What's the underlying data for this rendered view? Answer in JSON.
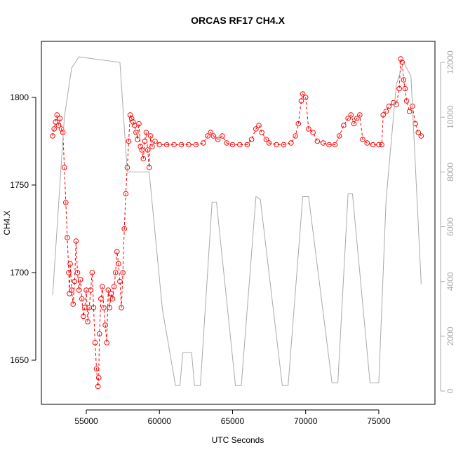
{
  "chart_data": {
    "type": "line",
    "title": "ORCAS RF17 CH4.X",
    "x_label": "UTC Seconds",
    "y_label": "CH4.X",
    "xlim": [
      51930,
      78840
    ],
    "xticks": [
      55000,
      60000,
      65000,
      70000,
      75000
    ],
    "ylim": [
      1624.8,
      1832
    ],
    "yticks": [
      1650,
      1700,
      1750,
      1800
    ],
    "y2lim": [
      -486,
      12768
    ],
    "y2ticks": [
      0,
      2000,
      4000,
      6000,
      8000,
      10000,
      12000
    ],
    "series": [
      {
        "name": "CH4.X",
        "color": "#ff0000",
        "marker": "circle",
        "line_style": "dashed",
        "x": [
          52700,
          52800,
          52900,
          53000,
          53100,
          53200,
          53300,
          53400,
          53500,
          53600,
          53700,
          53800,
          53850,
          53900,
          54000,
          54100,
          54200,
          54300,
          54400,
          54500,
          54600,
          54700,
          54800,
          54900,
          55000,
          55100,
          55200,
          55300,
          55400,
          55500,
          55600,
          55700,
          55800,
          55850,
          55900,
          56000,
          56100,
          56200,
          56300,
          56400,
          56500,
          56600,
          56700,
          56800,
          56900,
          57000,
          57100,
          57200,
          57300,
          57400,
          57500,
          57600,
          57700,
          57800,
          57900,
          58000,
          58100,
          58200,
          58300,
          58400,
          58500,
          58600,
          58700,
          58800,
          58900,
          59000,
          59100,
          59200,
          59300,
          59400,
          59500,
          59700,
          60000,
          60500,
          61000,
          61500,
          62000,
          62500,
          63000,
          63300,
          63500,
          63700,
          64000,
          64300,
          64600,
          65000,
          65500,
          66000,
          66300,
          66600,
          66800,
          67000,
          67300,
          67500,
          68000,
          68500,
          69000,
          69300,
          69500,
          69700,
          69800,
          70000,
          70200,
          70500,
          70800,
          71200,
          71600,
          72000,
          72300,
          72600,
          72900,
          73100,
          73300,
          73500,
          73700,
          73900,
          74200,
          74600,
          75000,
          75200,
          75300,
          75500,
          75700,
          76000,
          76200,
          76400,
          76500,
          76600,
          76700,
          76800,
          76900,
          77100,
          77300,
          77500,
          77700,
          77900
        ],
        "values": [
          1778,
          1782,
          1786,
          1790,
          1784,
          1788,
          1782,
          1780,
          1760,
          1740,
          1720,
          1700,
          1688,
          1705,
          1690,
          1682,
          1695,
          1718,
          1700,
          1690,
          1696,
          1685,
          1675,
          1680,
          1690,
          1672,
          1680,
          1690,
          1700,
          1680,
          1660,
          1645,
          1635,
          1640,
          1665,
          1685,
          1692,
          1680,
          1670,
          1660,
          1690,
          1680,
          1688,
          1685,
          1692,
          1700,
          1712,
          1705,
          1695,
          1680,
          1700,
          1725,
          1745,
          1760,
          1775,
          1790,
          1788,
          1786,
          1784,
          1780,
          1776,
          1785,
          1772,
          1770,
          1765,
          1775,
          1780,
          1770,
          1760,
          1778,
          1772,
          1775,
          1773,
          1773,
          1773,
          1773,
          1773,
          1773,
          1774,
          1778,
          1780,
          1778,
          1776,
          1778,
          1774,
          1773,
          1773,
          1773,
          1776,
          1782,
          1784,
          1780,
          1776,
          1774,
          1773,
          1773,
          1774,
          1778,
          1785,
          1798,
          1802,
          1800,
          1782,
          1780,
          1775,
          1774,
          1773,
          1773,
          1778,
          1784,
          1788,
          1790,
          1785,
          1788,
          1790,
          1776,
          1774,
          1773,
          1773,
          1773,
          1790,
          1792,
          1795,
          1797,
          1796,
          1805,
          1822,
          1820,
          1810,
          1805,
          1798,
          1792,
          1795,
          1785,
          1780,
          1778
        ]
      },
      {
        "color": "#aaaaaa",
        "axis": "y2",
        "line_style": "solid",
        "x": [
          52700,
          53500,
          54000,
          54500,
          57300,
          57800,
          59300,
          60200,
          61100,
          61400,
          61600,
          62200,
          62400,
          62800,
          63600,
          63900,
          65200,
          65600,
          66600,
          66900,
          68400,
          68800,
          69800,
          70200,
          71800,
          72200,
          72900,
          73200,
          74400,
          75000,
          75500,
          76200,
          76700,
          77200,
          77900
        ],
        "values": [
          3500,
          10000,
          11800,
          12200,
          12000,
          8000,
          8000,
          3000,
          200,
          200,
          1400,
          1400,
          200,
          200,
          6900,
          6900,
          200,
          200,
          7100,
          7000,
          200,
          200,
          7100,
          7100,
          300,
          300,
          7200,
          7200,
          300,
          300,
          7000,
          11200,
          12000,
          11500,
          3900
        ]
      }
    ]
  }
}
